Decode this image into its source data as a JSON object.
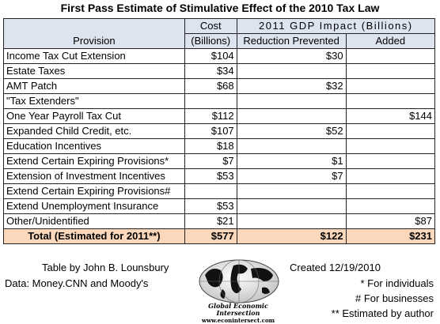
{
  "title": "First Pass Estimate of Stimulative Effect of the 2010 Tax Law",
  "headers": {
    "provision": "Provision",
    "cost_top": "Cost",
    "cost_bottom": "(Billions)",
    "gdp_impact": "2011 GDP Impact (Billions)",
    "reduction_prevented": "Reduction Prevented",
    "added": "Added"
  },
  "rows": [
    {
      "provision": "Income Tax Cut Extension",
      "cost": "$104",
      "reduction": "$30",
      "added": ""
    },
    {
      "provision": "Estate Taxes",
      "cost": "$34",
      "reduction": "",
      "added": ""
    },
    {
      "provision": "AMT Patch",
      "cost": "$68",
      "reduction": "$32",
      "added": ""
    },
    {
      "provision": "\"Tax Extenders\"",
      "cost": "",
      "reduction": "",
      "added": ""
    },
    {
      "provision": "One Year Payroll Tax Cut",
      "cost": "$112",
      "reduction": "",
      "added": "$144"
    },
    {
      "provision": "Expanded Child Credit, etc.",
      "cost": "$107",
      "reduction": "$52",
      "added": ""
    },
    {
      "provision": "Education Incentives",
      "cost": "$18",
      "reduction": "",
      "added": ""
    },
    {
      "provision": "Extend Certain Expiring Provisions*",
      "cost": "$7",
      "reduction": "$1",
      "added": ""
    },
    {
      "provision": "Extension of Investment Incentives",
      "cost": "$53",
      "reduction": "$7",
      "added": ""
    },
    {
      "provision": "Extend Certain Expiring Provisions#",
      "cost": "",
      "reduction": "",
      "added": ""
    },
    {
      "provision": "Extend Unemployment Insurance",
      "cost": "$53",
      "reduction": "",
      "added": ""
    },
    {
      "provision": "Other/Unidentified",
      "cost": "$21",
      "reduction": "",
      "added": "$87"
    }
  ],
  "total": {
    "label": "Total (Estimated for 2011**)",
    "cost": "$577",
    "reduction": "$122",
    "added": "$231"
  },
  "footer": {
    "credit": "Table by John B. Lounsbury",
    "created": "Created 12/19/2010",
    "data_source": "Data:  Money.CNN and Moody's",
    "note_individuals": "* For individuals",
    "note_businesses": "# For businesses",
    "note_estimated": "** Estimated by author"
  },
  "logo": {
    "name": "Global Economic Intersection",
    "url": "www.econintersect.com",
    "icon": "globe-icon"
  },
  "colors": {
    "header_bg": "#dde4f0",
    "total_bg": "#fbd8bb",
    "border": "#222222"
  }
}
